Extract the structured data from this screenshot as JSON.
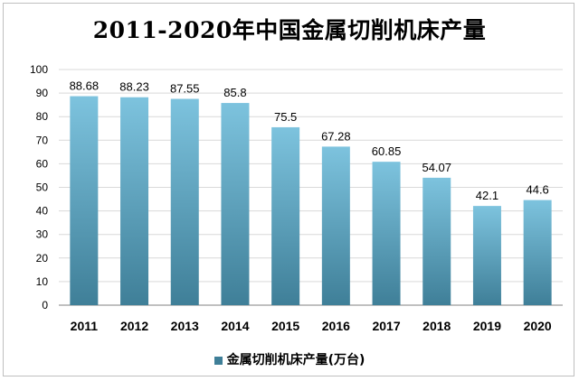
{
  "colors": {
    "bar_top": "#7dc3de",
    "bar_bottom": "#3f7f98",
    "gridline": "#d9d9d9",
    "axis": "#808080"
  },
  "chart_data": {
    "type": "bar",
    "title": "2011-2020年中国金属切削机床产量",
    "categories": [
      "2011",
      "2012",
      "2013",
      "2014",
      "2015",
      "2016",
      "2017",
      "2018",
      "2019",
      "2020"
    ],
    "series": [
      {
        "name": "金属切削机床产量(万台)",
        "values": [
          88.68,
          88.23,
          87.55,
          85.8,
          75.5,
          67.28,
          60.85,
          54.07,
          42.1,
          44.6
        ]
      }
    ],
    "data_labels": [
      "88.68",
      "88.23",
      "87.55",
      "85.8",
      "75.5",
      "67.28",
      "60.85",
      "54.07",
      "42.1",
      "44.6"
    ],
    "ylim": [
      0,
      100
    ],
    "yticks": [
      0,
      10,
      20,
      30,
      40,
      50,
      60,
      70,
      80,
      90,
      100
    ],
    "grid": true,
    "legend_position": "bottom"
  }
}
